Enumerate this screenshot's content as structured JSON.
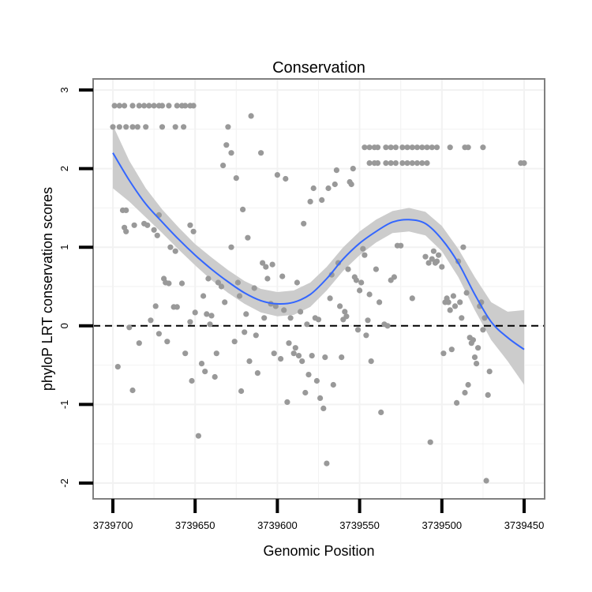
{
  "chart_data": {
    "type": "scatter",
    "title": "Conservation",
    "xlabel": "Genomic Position",
    "ylabel": "phyloP LRT conservation scores",
    "x_reversed": true,
    "xlim": [
      3739700,
      3739450
    ],
    "ylim": [
      -2,
      3
    ],
    "x_ticks": [
      3739700,
      3739650,
      3739600,
      3739550,
      3739500,
      3739450
    ],
    "x_tick_labels": [
      "3739700",
      "3739650",
      "3739600",
      "3739550",
      "3739500",
      "3739450"
    ],
    "y_ticks": [
      -2,
      -1,
      0,
      1,
      2,
      3
    ],
    "y_tick_labels": [
      "-2",
      "-1",
      "0",
      "1",
      "2",
      "3"
    ],
    "grid": true,
    "reference_line": {
      "y": 0,
      "style": "dashed"
    },
    "colors": {
      "points": "#999999",
      "smooth": "#3366FF",
      "ribbon": "#CCCCCC",
      "grid": "#F2F2F2",
      "border": "#808080"
    },
    "points": [
      [
        3739699,
        2.8
      ],
      [
        3739696,
        2.8
      ],
      [
        3739693,
        2.8
      ],
      [
        3739688,
        2.8
      ],
      [
        3739684,
        2.8
      ],
      [
        3739681,
        2.8
      ],
      [
        3739678,
        2.8
      ],
      [
        3739675,
        2.8
      ],
      [
        3739672,
        2.8
      ],
      [
        3739670,
        2.8
      ],
      [
        3739666,
        2.8
      ],
      [
        3739661,
        2.8
      ],
      [
        3739658,
        2.8
      ],
      [
        3739656,
        2.8
      ],
      [
        3739653,
        2.8
      ],
      [
        3739651,
        2.8
      ],
      [
        3739700,
        2.53
      ],
      [
        3739696,
        2.53
      ],
      [
        3739692,
        2.53
      ],
      [
        3739688,
        2.53
      ],
      [
        3739685,
        2.53
      ],
      [
        3739680,
        2.53
      ],
      [
        3739670,
        2.53
      ],
      [
        3739662,
        2.53
      ],
      [
        3739657,
        2.53
      ],
      [
        3739694,
        1.47
      ],
      [
        3739692,
        1.47
      ],
      [
        3739693,
        1.25
      ],
      [
        3739692,
        1.2
      ],
      [
        3739687,
        1.28
      ],
      [
        3739681,
        1.3
      ],
      [
        3739679,
        1.28
      ],
      [
        3739675,
        1.22
      ],
      [
        3739673,
        1.15
      ],
      [
        3739672,
        1.41
      ],
      [
        3739665,
        1.0
      ],
      [
        3739662,
        0.95
      ],
      [
        3739653,
        1.28
      ],
      [
        3739651,
        1.2
      ],
      [
        3739697,
        -0.52
      ],
      [
        3739690,
        -0.02
      ],
      [
        3739688,
        -0.82
      ],
      [
        3739684,
        -0.22
      ],
      [
        3739677,
        0.07
      ],
      [
        3739674,
        0.25
      ],
      [
        3739672,
        -0.1
      ],
      [
        3739669,
        0.6
      ],
      [
        3739668,
        0.55
      ],
      [
        3739667,
        -0.2
      ],
      [
        3739666,
        0.54
      ],
      [
        3739663,
        0.24
      ],
      [
        3739661,
        0.24
      ],
      [
        3739658,
        0.54
      ],
      [
        3739656,
        -0.35
      ],
      [
        3739653,
        0.05
      ],
      [
        3739652,
        -0.7
      ],
      [
        3739650,
        0.17
      ],
      [
        3739648,
        -1.4
      ],
      [
        3739646,
        -0.48
      ],
      [
        3739645,
        0.38
      ],
      [
        3739644,
        -0.58
      ],
      [
        3739643,
        0.15
      ],
      [
        3739642,
        0.6
      ],
      [
        3739641,
        0.02
      ],
      [
        3739640,
        0.13
      ],
      [
        3739638,
        -0.65
      ],
      [
        3739637,
        -0.35
      ],
      [
        3739636,
        0.55
      ],
      [
        3739634,
        0.5
      ],
      [
        3739633,
        2.04
      ],
      [
        3739632,
        0.3
      ],
      [
        3739631,
        2.3
      ],
      [
        3739630,
        2.53
      ],
      [
        3739628,
        2.2
      ],
      [
        3739628,
        1.0
      ],
      [
        3739626,
        -0.2
      ],
      [
        3739625,
        1.88
      ],
      [
        3739624,
        0.55
      ],
      [
        3739623,
        0.38
      ],
      [
        3739622,
        -0.83
      ],
      [
        3739621,
        1.48
      ],
      [
        3739620,
        -0.08
      ],
      [
        3739619,
        0.15
      ],
      [
        3739618,
        1.12
      ],
      [
        3739617,
        -0.45
      ],
      [
        3739616,
        2.67
      ],
      [
        3739614,
        0.48
      ],
      [
        3739613,
        -0.12
      ],
      [
        3739612,
        -0.6
      ],
      [
        3739610,
        2.2
      ],
      [
        3739609,
        0.8
      ],
      [
        3739608,
        0.1
      ],
      [
        3739607,
        0.75
      ],
      [
        3739606,
        0.6
      ],
      [
        3739604,
        0.28
      ],
      [
        3739603,
        0.78
      ],
      [
        3739602,
        -0.35
      ],
      [
        3739601,
        0.25
      ],
      [
        3739600,
        1.92
      ],
      [
        3739598,
        -0.42
      ],
      [
        3739597,
        0.63
      ],
      [
        3739596,
        0.2
      ],
      [
        3739595,
        1.87
      ],
      [
        3739594,
        -0.97
      ],
      [
        3739593,
        -0.22
      ],
      [
        3739592,
        0.1
      ],
      [
        3739590,
        -0.35
      ],
      [
        3739589,
        -0.28
      ],
      [
        3739588,
        0.55
      ],
      [
        3739587,
        -0.38
      ],
      [
        3739586,
        0.18
      ],
      [
        3739585,
        -0.45
      ],
      [
        3739584,
        1.3
      ],
      [
        3739583,
        -0.85
      ],
      [
        3739582,
        0.02
      ],
      [
        3739581,
        -0.62
      ],
      [
        3739580,
        1.58
      ],
      [
        3739579,
        -0.38
      ],
      [
        3739578,
        1.75
      ],
      [
        3739577,
        0.1
      ],
      [
        3739576,
        -0.7
      ],
      [
        3739575,
        0.08
      ],
      [
        3739574,
        -0.92
      ],
      [
        3739573,
        1.6
      ],
      [
        3739572,
        -1.05
      ],
      [
        3739571,
        -0.4
      ],
      [
        3739570,
        -1.75
      ],
      [
        3739569,
        1.75
      ],
      [
        3739568,
        0.35
      ],
      [
        3739567,
        0.65
      ],
      [
        3739566,
        -0.75
      ],
      [
        3739565,
        1.8
      ],
      [
        3739564,
        1.98
      ],
      [
        3739563,
        0.8
      ],
      [
        3739562,
        0.25
      ],
      [
        3739561,
        -0.4
      ],
      [
        3739560,
        0.08
      ],
      [
        3739559,
        0.18
      ],
      [
        3739558,
        0.12
      ],
      [
        3739557,
        0.72
      ],
      [
        3739556,
        1.83
      ],
      [
        3739555,
        1.8
      ],
      [
        3739554,
        2.0
      ],
      [
        3739553,
        0.62
      ],
      [
        3739552,
        0.58
      ],
      [
        3739551,
        -0.05
      ],
      [
        3739550,
        0.45
      ],
      [
        3739549,
        0.55
      ],
      [
        3739548,
        0.98
      ],
      [
        3739547,
        0.9
      ],
      [
        3739546,
        -0.12
      ],
      [
        3739545,
        0.07
      ],
      [
        3739544,
        0.4
      ],
      [
        3739543,
        -0.45
      ],
      [
        3739540,
        0.72
      ],
      [
        3739538,
        0.3
      ],
      [
        3739537,
        -1.1
      ],
      [
        3739535,
        0.02
      ],
      [
        3739533,
        0.0
      ],
      [
        3739531,
        0.58
      ],
      [
        3739529,
        0.62
      ],
      [
        3739527,
        1.02
      ],
      [
        3739525,
        1.02
      ],
      [
        3739518,
        0.35
      ],
      [
        3739510,
        0.88
      ],
      [
        3739508,
        0.8
      ],
      [
        3739507,
        -1.48
      ],
      [
        3739506,
        0.85
      ],
      [
        3739505,
        0.95
      ],
      [
        3739504,
        0.8
      ],
      [
        3739503,
        0.82
      ],
      [
        3739502,
        0.9
      ],
      [
        3739500,
        0.75
      ],
      [
        3739499,
        -0.35
      ],
      [
        3739498,
        0.3
      ],
      [
        3739497,
        0.35
      ],
      [
        3739496,
        0.3
      ],
      [
        3739495,
        0.2
      ],
      [
        3739494,
        -0.3
      ],
      [
        3739493,
        0.38
      ],
      [
        3739492,
        0.25
      ],
      [
        3739491,
        -0.98
      ],
      [
        3739490,
        0.82
      ],
      [
        3739489,
        0.3
      ],
      [
        3739488,
        0.1
      ],
      [
        3739487,
        1.0
      ],
      [
        3739486,
        -0.85
      ],
      [
        3739485,
        0.42
      ],
      [
        3739484,
        -0.75
      ],
      [
        3739483,
        -0.15
      ],
      [
        3739482,
        -0.22
      ],
      [
        3739481,
        -0.18
      ],
      [
        3739480,
        -0.4
      ],
      [
        3739479,
        -0.48
      ],
      [
        3739478,
        -0.28
      ],
      [
        3739477,
        0.25
      ],
      [
        3739476,
        0.3
      ],
      [
        3739475,
        -0.05
      ],
      [
        3739474,
        0.1
      ],
      [
        3739473,
        -1.97
      ],
      [
        3739472,
        -0.88
      ],
      [
        3739471,
        -0.58
      ],
      [
        3739547,
        2.27
      ],
      [
        3739544,
        2.27
      ],
      [
        3739541,
        2.27
      ],
      [
        3739539,
        2.27
      ],
      [
        3739534,
        2.27
      ],
      [
        3739531,
        2.27
      ],
      [
        3739528,
        2.27
      ],
      [
        3739524,
        2.27
      ],
      [
        3739521,
        2.27
      ],
      [
        3739518,
        2.27
      ],
      [
        3739515,
        2.27
      ],
      [
        3739512,
        2.27
      ],
      [
        3739509,
        2.27
      ],
      [
        3739506,
        2.27
      ],
      [
        3739503,
        2.27
      ],
      [
        3739495,
        2.27
      ],
      [
        3739486,
        2.27
      ],
      [
        3739484,
        2.27
      ],
      [
        3739475,
        2.27
      ],
      [
        3739544,
        2.07
      ],
      [
        3739541,
        2.07
      ],
      [
        3739539,
        2.07
      ],
      [
        3739534,
        2.07
      ],
      [
        3739531,
        2.07
      ],
      [
        3739528,
        2.07
      ],
      [
        3739524,
        2.07
      ],
      [
        3739521,
        2.07
      ],
      [
        3739518,
        2.07
      ],
      [
        3739515,
        2.07
      ],
      [
        3739512,
        2.07
      ],
      [
        3739509,
        2.07
      ],
      [
        3739452,
        2.07
      ],
      [
        3739450,
        2.07
      ]
    ],
    "smooth": {
      "x": [
        3739700,
        3739690,
        3739680,
        3739670,
        3739660,
        3739650,
        3739640,
        3739630,
        3739620,
        3739610,
        3739600,
        3739590,
        3739580,
        3739570,
        3739560,
        3739550,
        3739540,
        3739530,
        3739520,
        3739510,
        3739500,
        3739490,
        3739480,
        3739470,
        3739460,
        3739450
      ],
      "y": [
        2.2,
        1.85,
        1.55,
        1.32,
        1.1,
        0.9,
        0.72,
        0.56,
        0.42,
        0.32,
        0.28,
        0.3,
        0.4,
        0.6,
        0.85,
        1.05,
        1.2,
        1.32,
        1.35,
        1.3,
        1.1,
        0.8,
        0.4,
        0.05,
        -0.15,
        -0.3
      ],
      "ymin": [
        1.75,
        1.58,
        1.38,
        1.18,
        0.97,
        0.77,
        0.58,
        0.42,
        0.28,
        0.17,
        0.12,
        0.14,
        0.24,
        0.45,
        0.7,
        0.9,
        1.06,
        1.18,
        1.2,
        1.15,
        0.95,
        0.62,
        0.2,
        -0.18,
        -0.45,
        -0.75
      ],
      "ymax": [
        2.55,
        2.1,
        1.75,
        1.48,
        1.25,
        1.04,
        0.87,
        0.71,
        0.57,
        0.47,
        0.43,
        0.45,
        0.55,
        0.75,
        1.0,
        1.2,
        1.35,
        1.46,
        1.5,
        1.45,
        1.27,
        0.98,
        0.62,
        0.3,
        0.18,
        0.2
      ]
    }
  }
}
